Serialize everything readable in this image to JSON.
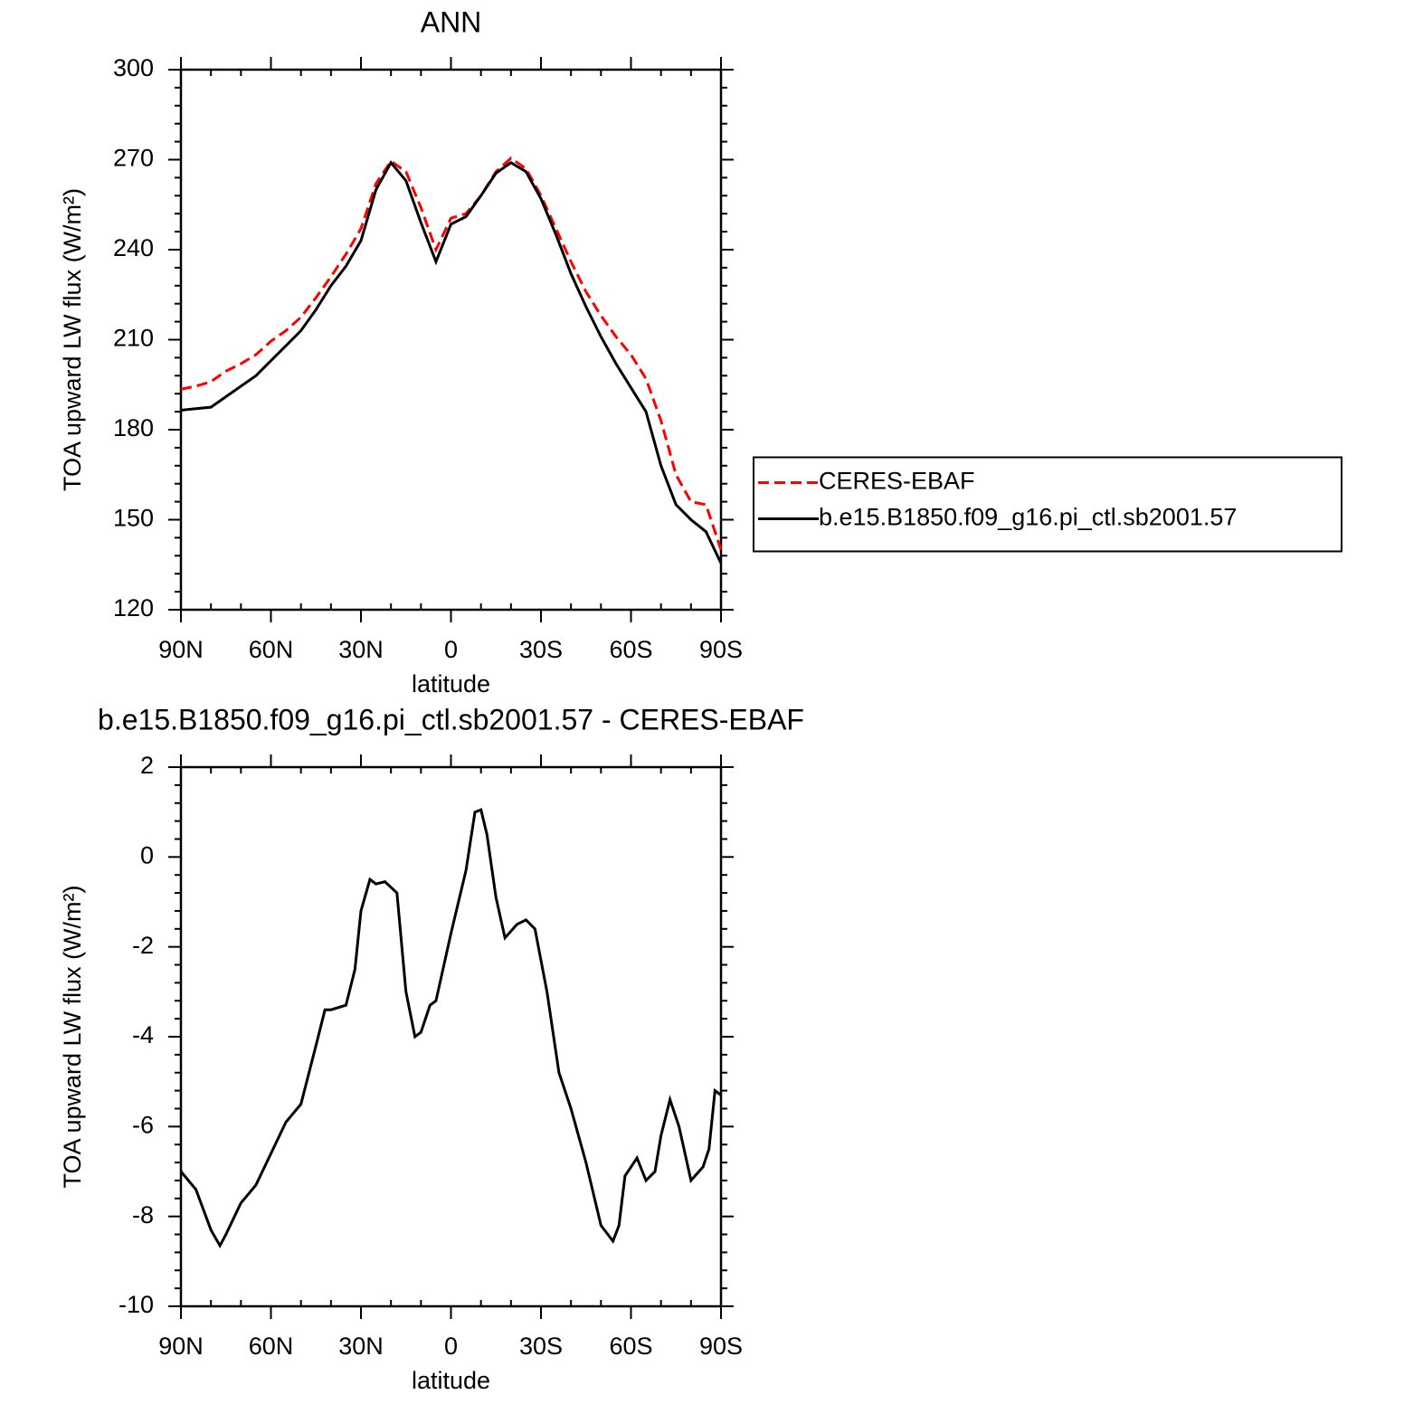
{
  "chart_data": [
    {
      "type": "line",
      "title": "ANN",
      "x_label": "latitude",
      "y_label": "TOA upward LW flux (W/m²)",
      "x": [
        90,
        85,
        80,
        75,
        70,
        65,
        60,
        55,
        50,
        45,
        40,
        35,
        30,
        25,
        20,
        15,
        10,
        5,
        0,
        -5,
        -10,
        -15,
        -20,
        -25,
        -30,
        -35,
        -40,
        -45,
        -50,
        -55,
        -60,
        -65,
        -70,
        -75,
        -80,
        -85,
        -90
      ],
      "series": [
        {
          "name": "CERES-EBAF",
          "color": "#ff0000",
          "dashed": true,
          "values": [
            193.5,
            194.5,
            196,
            199.5,
            202,
            205,
            209.5,
            213,
            217.5,
            224,
            231,
            238.5,
            247,
            262,
            269.5,
            266,
            254,
            240,
            250.5,
            252,
            258,
            266,
            270.5,
            267,
            258,
            247,
            236,
            226,
            218,
            211,
            205,
            197,
            183,
            165,
            156,
            155,
            140
          ]
        },
        {
          "name": "b.e15.B1850.f09_g16.pi_ctl.sb2001.57",
          "color": "#000000",
          "dashed": false,
          "values": [
            186.5,
            187,
            187.5,
            191,
            194.5,
            198,
            203,
            208,
            213,
            220,
            228,
            234.5,
            243,
            260,
            269,
            263,
            249,
            236,
            248.5,
            251,
            258,
            265.5,
            269,
            266,
            257,
            245,
            232,
            221,
            211,
            202,
            194,
            186,
            168,
            155,
            150,
            146,
            135.5
          ]
        }
      ],
      "xlim": [
        90,
        -90
      ],
      "xticks": [
        {
          "value": 90,
          "label": "90N"
        },
        {
          "value": 60,
          "label": "60N"
        },
        {
          "value": 30,
          "label": "30N"
        },
        0,
        {
          "value": -30,
          "label": "30S"
        },
        {
          "value": -60,
          "label": "60S"
        },
        {
          "value": -90,
          "label": "90S"
        }
      ],
      "ylim": [
        120,
        300
      ],
      "yticks": [
        120,
        150,
        180,
        210,
        240,
        270,
        300
      ],
      "legend": "right"
    },
    {
      "type": "line",
      "title": "b.e15.B1850.f09_g16.pi_ctl.sb2001.57 - CERES-EBAF",
      "x_label": "latitude",
      "y_label": "TOA upward LW flux (W/m²)",
      "x": [
        90,
        85,
        80,
        77,
        75,
        70,
        65,
        60,
        55,
        50,
        45,
        42,
        40,
        35,
        32,
        30,
        27,
        25,
        22,
        18,
        15,
        12,
        10,
        7,
        5,
        0,
        -5,
        -8,
        -10,
        -12,
        -15,
        -18,
        -22,
        -25,
        -28,
        -32,
        -36,
        -40,
        -45,
        -50,
        -54,
        -56,
        -58,
        -62,
        -65,
        -68,
        -70,
        -73,
        -76,
        -80,
        -84,
        -86,
        -88,
        -90
      ],
      "series": [
        {
          "name": null,
          "color": "#000000",
          "dashed": false,
          "values": [
            -7.0,
            -7.4,
            -8.3,
            -8.65,
            -8.4,
            -7.7,
            -7.3,
            -6.6,
            -5.9,
            -5.5,
            -4.2,
            -3.4,
            -3.4,
            -3.3,
            -2.5,
            -1.2,
            -0.5,
            -0.6,
            -0.55,
            -0.8,
            -3.0,
            -4.0,
            -3.9,
            -3.3,
            -3.2,
            -1.7,
            -0.3,
            1.0,
            1.05,
            0.5,
            -0.9,
            -1.8,
            -1.5,
            -1.4,
            -1.6,
            -3.0,
            -4.8,
            -5.6,
            -6.8,
            -8.2,
            -8.55,
            -8.2,
            -7.1,
            -6.7,
            -7.2,
            -7.0,
            -6.2,
            -5.4,
            -6.0,
            -7.2,
            -6.9,
            -6.5,
            -5.2,
            -5.3
          ]
        }
      ],
      "xlim": [
        90,
        -90
      ],
      "xticks": [
        {
          "value": 90,
          "label": "90N"
        },
        {
          "value": 60,
          "label": "60N"
        },
        {
          "value": 30,
          "label": "30N"
        },
        0,
        {
          "value": -30,
          "label": "30S"
        },
        {
          "value": -60,
          "label": "60S"
        },
        {
          "value": -90,
          "label": "90S"
        }
      ],
      "ylim": [
        -10,
        2
      ],
      "yticks": [
        -10,
        -8,
        -6,
        -4,
        -2,
        0,
        2
      ]
    }
  ]
}
